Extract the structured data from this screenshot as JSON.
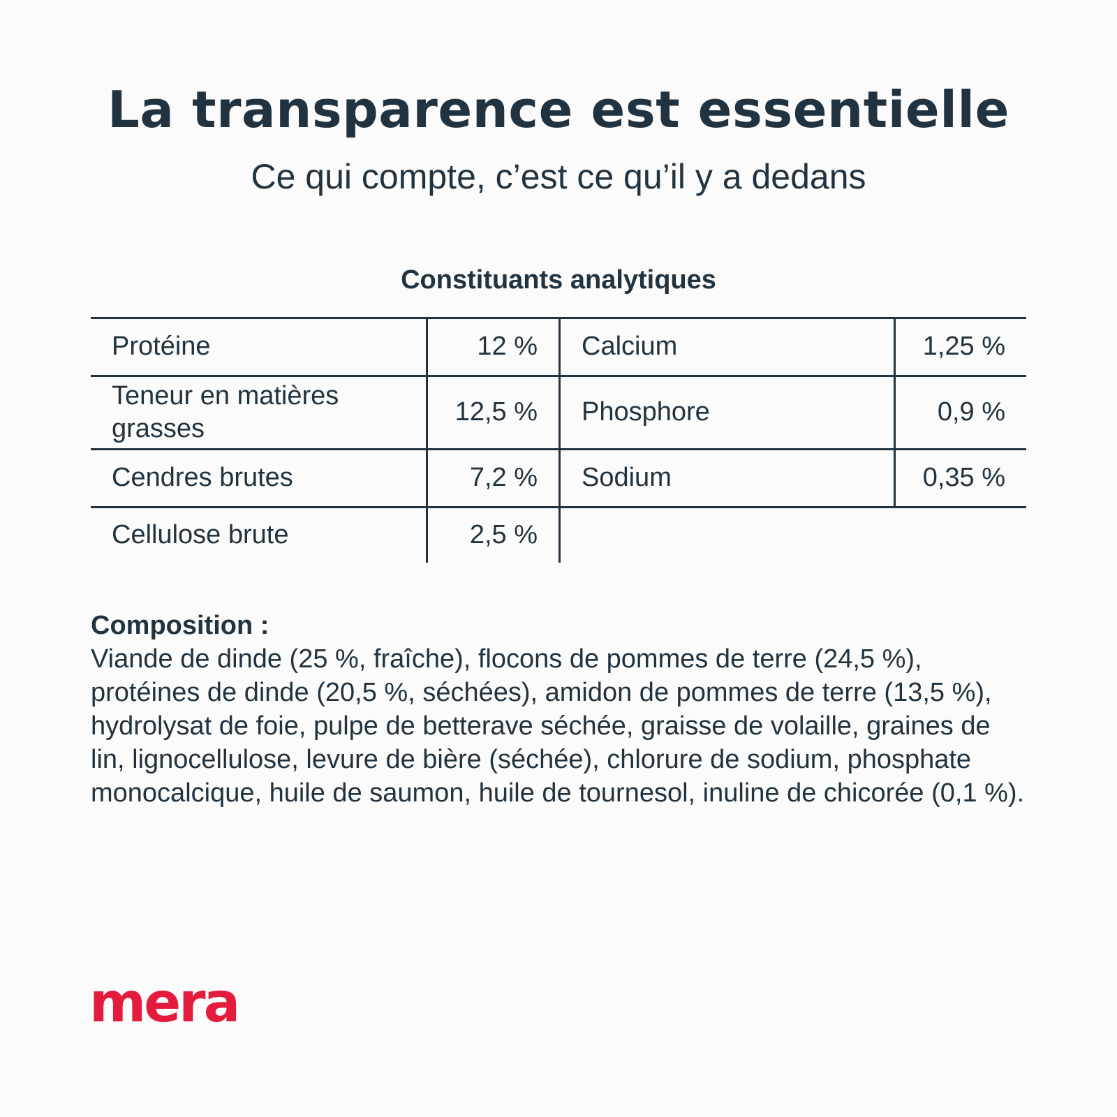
{
  "header": {
    "title": "La transparence est essentielle",
    "subtitle": "Ce qui compte, c’est ce qu’il y a dedans"
  },
  "analysis": {
    "title": "Constituants analytiques",
    "rows": [
      {
        "name1": "Protéine",
        "value1": "12 %",
        "name2": "Calcium",
        "value2": "1,25 %"
      },
      {
        "name1": "Teneur en matières grasses",
        "value1": "12,5 %",
        "name2": "Phosphore",
        "value2": "0,9 %"
      },
      {
        "name1": "Cendres brutes",
        "value1": "7,2 %",
        "name2": "Sodium",
        "value2": "0,35 %"
      },
      {
        "name1": "Cellulose brute",
        "value1": "2,5 %",
        "name2": "",
        "value2": ""
      }
    ]
  },
  "composition": {
    "heading": "Composition :",
    "text": "Viande de dinde (25 %, fraîche), flocons de pommes de terre (24,5 %), protéines de dinde (20,5 %, séchées), amidon de pommes de terre (13,5 %), hydrolysat de foie, pulpe de betterave séchée, graisse de volaille, graines de lin, lignocellulose, levure de bière (séchée), chlorure de sodium, phosphate monocalcique, huile de saumon, huile de tournesol, inuline de chicorée (0,1 %)."
  },
  "brand": {
    "logo_text": "mera",
    "color": "#e31b3c"
  },
  "colors": {
    "text": "#213340",
    "background": "#fbfbfb"
  }
}
